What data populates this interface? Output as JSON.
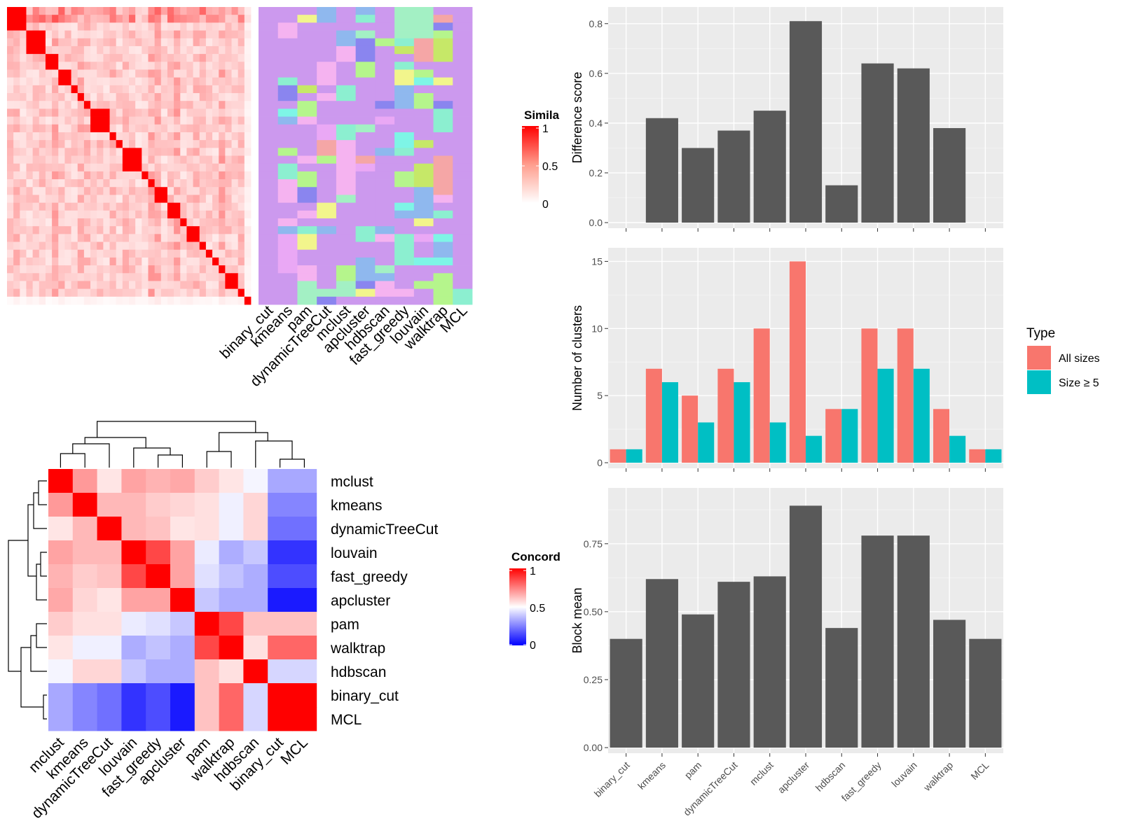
{
  "methods_order": [
    "binary_cut",
    "kmeans",
    "pam",
    "dynamicTreeCut",
    "mclust",
    "apcluster",
    "hdbscan",
    "fast_greedy",
    "louvain",
    "walktrap",
    "MCL"
  ],
  "colors": {
    "bar_dark": "#595959",
    "all_sizes": "#F8766D",
    "size_ge_5": "#00BFC4",
    "panel_bg": "#EBEBEB",
    "heat_high": "#FF0000",
    "heat_low_blue": "#0000FF",
    "heat_white": "#FFFFFF"
  },
  "similarity_heatmap": {
    "legend_title": "Simila",
    "legend_ticks": [
      "1",
      "0.5",
      "0"
    ],
    "column_labels": [
      "binary_cut",
      "kmeans",
      "pam",
      "dynamicTreeCut",
      "mclust",
      "apcluster",
      "hdbscan",
      "fast_greedy",
      "louvain",
      "walktrap",
      "MCL"
    ],
    "block_sizes": [
      3,
      3,
      2,
      2,
      1,
      1,
      1,
      3,
      1,
      1,
      3,
      1,
      1,
      2,
      2,
      1,
      2,
      1,
      1,
      1,
      1,
      2,
      1,
      1
    ]
  },
  "concordance_heatmap": {
    "legend_title": "Concord",
    "legend_ticks": [
      "1",
      "0.5",
      "0"
    ],
    "row_labels": [
      "mclust",
      "kmeans",
      "dynamicTreeCut",
      "louvain",
      "fast_greedy",
      "apcluster",
      "pam",
      "walktrap",
      "hdbscan",
      "binary_cut",
      "MCL"
    ],
    "col_labels": [
      "mclust",
      "kmeans",
      "dynamicTreeCut",
      "louvain",
      "fast_greedy",
      "apcluster",
      "pam",
      "walktrap",
      "hdbscan",
      "binary_cut",
      "MCL"
    ],
    "matrix": [
      [
        1.0,
        0.7,
        0.55,
        0.68,
        0.65,
        0.67,
        0.6,
        0.55,
        0.48,
        0.33,
        0.33
      ],
      [
        0.7,
        1.0,
        0.64,
        0.64,
        0.6,
        0.58,
        0.56,
        0.47,
        0.58,
        0.26,
        0.26
      ],
      [
        0.55,
        0.64,
        1.0,
        0.64,
        0.62,
        0.55,
        0.56,
        0.47,
        0.58,
        0.22,
        0.22
      ],
      [
        0.68,
        0.64,
        0.64,
        1.0,
        0.86,
        0.68,
        0.46,
        0.34,
        0.39,
        0.1,
        0.1
      ],
      [
        0.65,
        0.6,
        0.62,
        0.86,
        1.0,
        0.68,
        0.44,
        0.38,
        0.34,
        0.15,
        0.15
      ],
      [
        0.67,
        0.58,
        0.55,
        0.68,
        0.68,
        1.0,
        0.39,
        0.34,
        0.34,
        0.05,
        0.05
      ],
      [
        0.6,
        0.56,
        0.56,
        0.46,
        0.44,
        0.39,
        1.0,
        0.86,
        0.62,
        0.62,
        0.62
      ],
      [
        0.55,
        0.47,
        0.47,
        0.34,
        0.38,
        0.34,
        0.86,
        1.0,
        0.56,
        0.8,
        0.8
      ],
      [
        0.48,
        0.58,
        0.58,
        0.39,
        0.34,
        0.34,
        0.62,
        0.56,
        1.0,
        0.42,
        0.42
      ],
      [
        0.33,
        0.26,
        0.22,
        0.1,
        0.15,
        0.05,
        0.62,
        0.8,
        0.42,
        1.0,
        1.0
      ],
      [
        0.33,
        0.26,
        0.22,
        0.1,
        0.15,
        0.05,
        0.62,
        0.8,
        0.42,
        1.0,
        1.0
      ]
    ]
  },
  "chart_data": [
    {
      "type": "bar",
      "categories": [
        "binary_cut",
        "kmeans",
        "pam",
        "dynamicTreeCut",
        "mclust",
        "apcluster",
        "hdbscan",
        "fast_greedy",
        "louvain",
        "walktrap",
        "MCL"
      ],
      "values": [
        0,
        0.42,
        0.3,
        0.37,
        0.45,
        0.81,
        0.15,
        0.64,
        0.62,
        0.38,
        0
      ],
      "title": "",
      "xlabel": "",
      "ylabel": "Difference score",
      "ylim": [
        0,
        0.85
      ],
      "yticks": [
        "0.0",
        "0.2",
        "0.4",
        "0.6",
        "0.8"
      ],
      "grid": true
    },
    {
      "type": "bar",
      "categories": [
        "binary_cut",
        "kmeans",
        "pam",
        "dynamicTreeCut",
        "mclust",
        "apcluster",
        "hdbscan",
        "fast_greedy",
        "louvain",
        "walktrap",
        "MCL"
      ],
      "series": [
        {
          "name": "All sizes",
          "values": [
            1,
            7,
            5,
            7,
            10,
            15,
            4,
            10,
            10,
            4,
            1
          ]
        },
        {
          "name": "Size ≥ 5",
          "values": [
            1,
            6,
            3,
            6,
            3,
            2,
            4,
            7,
            7,
            2,
            1
          ]
        }
      ],
      "title": "",
      "xlabel": "",
      "ylabel": "Number of clusters",
      "ylim": [
        0,
        15.7
      ],
      "yticks": [
        "0",
        "5",
        "10",
        "15"
      ],
      "legend_title": "Type",
      "legend_position": "right",
      "grid": true
    },
    {
      "type": "bar",
      "categories": [
        "binary_cut",
        "kmeans",
        "pam",
        "dynamicTreeCut",
        "mclust",
        "apcluster",
        "hdbscan",
        "fast_greedy",
        "louvain",
        "walktrap",
        "MCL"
      ],
      "values": [
        0.4,
        0.62,
        0.49,
        0.61,
        0.63,
        0.89,
        0.44,
        0.78,
        0.78,
        0.47,
        0.4
      ],
      "title": "",
      "xlabel": "",
      "ylabel": "Block mean",
      "ylim": [
        0,
        0.94
      ],
      "yticks": [
        "0.00",
        "0.25",
        "0.50",
        "0.75"
      ],
      "grid": true
    }
  ]
}
